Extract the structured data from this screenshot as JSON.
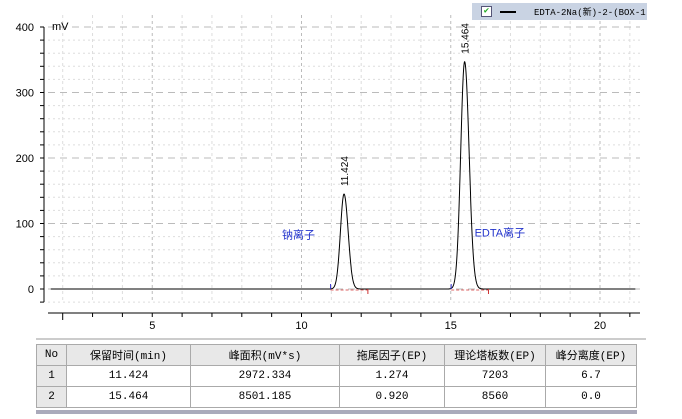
{
  "legend": {
    "checked": true,
    "label": "EDTA-2Na(新)-2-(BOX-1"
  },
  "chart_data": {
    "type": "line",
    "xlabel": "",
    "ylabel": "mV",
    "xlim": [
      1.5,
      21.2
    ],
    "ylim": [
      -15,
      420
    ],
    "xticks": [
      5,
      10,
      15,
      20
    ],
    "yticks": [
      0,
      100,
      200,
      300,
      400
    ],
    "grid": true,
    "peaks": [
      {
        "rt": 11.424,
        "height": 145,
        "label": "11.424",
        "name": "钠离子",
        "width": 0.12
      },
      {
        "rt": 15.464,
        "height": 347,
        "label": "15.464",
        "name": "EDTA离子",
        "width": 0.13
      }
    ],
    "baseline": 0
  },
  "table": {
    "headers": [
      "No",
      "保留时间(min)",
      "峰面积(mV*s)",
      "拖尾因子(EP)",
      "理论塔板数(EP)",
      "峰分离度(EP)"
    ],
    "rows": [
      [
        "1",
        "11.424",
        "2972.334",
        "1.274",
        "7203",
        "6.7"
      ],
      [
        "2",
        "15.464",
        "8501.185",
        "0.920",
        "8560",
        "0.0"
      ]
    ]
  }
}
